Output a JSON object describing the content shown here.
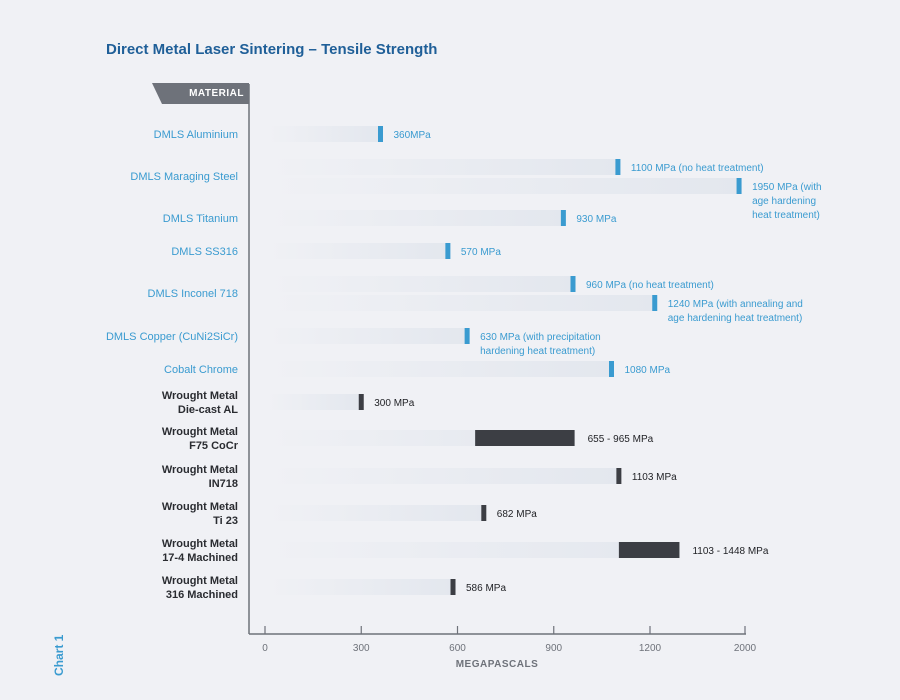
{
  "title": "Direct Metal Laser Sintering – Tensile Strength",
  "header_label": "MATERIAL",
  "side_label": "Chart 1",
  "colors": {
    "blue": "#3a9bd0",
    "dark": "#3c3e44",
    "axis": "#6e727a",
    "title": "#1f5f98",
    "track_end": "#e3e7ee"
  },
  "chart_data": {
    "type": "bar",
    "xlabel": "MEGAPASCALS",
    "xlim": [
      0,
      2000
    ],
    "x_ticks": [
      0,
      300,
      600,
      900,
      1200,
      2000
    ],
    "x_tick_labels": [
      "0",
      "300",
      "600",
      "900",
      "1200",
      "2000"
    ],
    "grid": false,
    "categories": [
      {
        "label": [
          "DMLS Aluminium"
        ],
        "color": "blue",
        "bars": [
          {
            "value": 360,
            "text": [
              "360MPa"
            ]
          }
        ]
      },
      {
        "label": [
          "DMLS Maraging Steel"
        ],
        "color": "blue",
        "bars": [
          {
            "value": 1100,
            "text": [
              "1100 MPa (no heat treatment)"
            ]
          },
          {
            "value": 1950,
            "text": [
              "1950 MPa (with",
              "age hardening",
              "heat treatment)"
            ]
          }
        ]
      },
      {
        "label": [
          "DMLS Titanium"
        ],
        "color": "blue",
        "bars": [
          {
            "value": 930,
            "text": [
              "930 MPa"
            ]
          }
        ]
      },
      {
        "label": [
          "DMLS SS316"
        ],
        "color": "blue",
        "bars": [
          {
            "value": 570,
            "text": [
              "570 MPa"
            ]
          }
        ]
      },
      {
        "label": [
          "DMLS Inconel 718"
        ],
        "color": "blue",
        "bars": [
          {
            "value": 960,
            "text": [
              "960 MPa (no heat treatment)"
            ]
          },
          {
            "value": 1240,
            "text": [
              "1240 MPa (with annealing and",
              "age hardening heat treatment)"
            ]
          }
        ]
      },
      {
        "label": [
          "DMLS Copper (CuNi2SiCr)"
        ],
        "color": "blue",
        "bars": [
          {
            "value": 630,
            "text": [
              "630 MPa (with precipitation",
              "hardening heat treatment)"
            ]
          }
        ]
      },
      {
        "label": [
          "Cobalt Chrome"
        ],
        "color": "blue",
        "bars": [
          {
            "value": 1080,
            "text": [
              "1080 MPa"
            ]
          }
        ]
      },
      {
        "label": [
          "Wrought Metal",
          "Die-cast AL"
        ],
        "color": "dark",
        "bars": [
          {
            "value": 300,
            "text": [
              "300 MPa"
            ]
          }
        ]
      },
      {
        "label": [
          "Wrought Metal",
          "F75 CoCr"
        ],
        "color": "dark",
        "bars": [
          {
            "min": 655,
            "max": 965,
            "text": [
              "655 - 965 MPa"
            ]
          }
        ]
      },
      {
        "label": [
          "Wrought Metal",
          "IN718"
        ],
        "color": "dark",
        "bars": [
          {
            "value": 1103,
            "text": [
              "1103 MPa"
            ]
          }
        ]
      },
      {
        "label": [
          "Wrought Metal",
          "Ti 23"
        ],
        "color": "dark",
        "bars": [
          {
            "value": 682,
            "text": [
              "682 MPa"
            ]
          }
        ]
      },
      {
        "label": [
          "Wrought Metal",
          "17-4 Machined"
        ],
        "color": "dark",
        "bars": [
          {
            "min": 1103,
            "max": 1448,
            "text": [
              "1103 - 1448 MPa"
            ]
          }
        ]
      },
      {
        "label": [
          "Wrought Metal",
          "316 Machined"
        ],
        "color": "dark",
        "bars": [
          {
            "value": 586,
            "text": [
              "586 MPa"
            ]
          }
        ]
      }
    ]
  }
}
